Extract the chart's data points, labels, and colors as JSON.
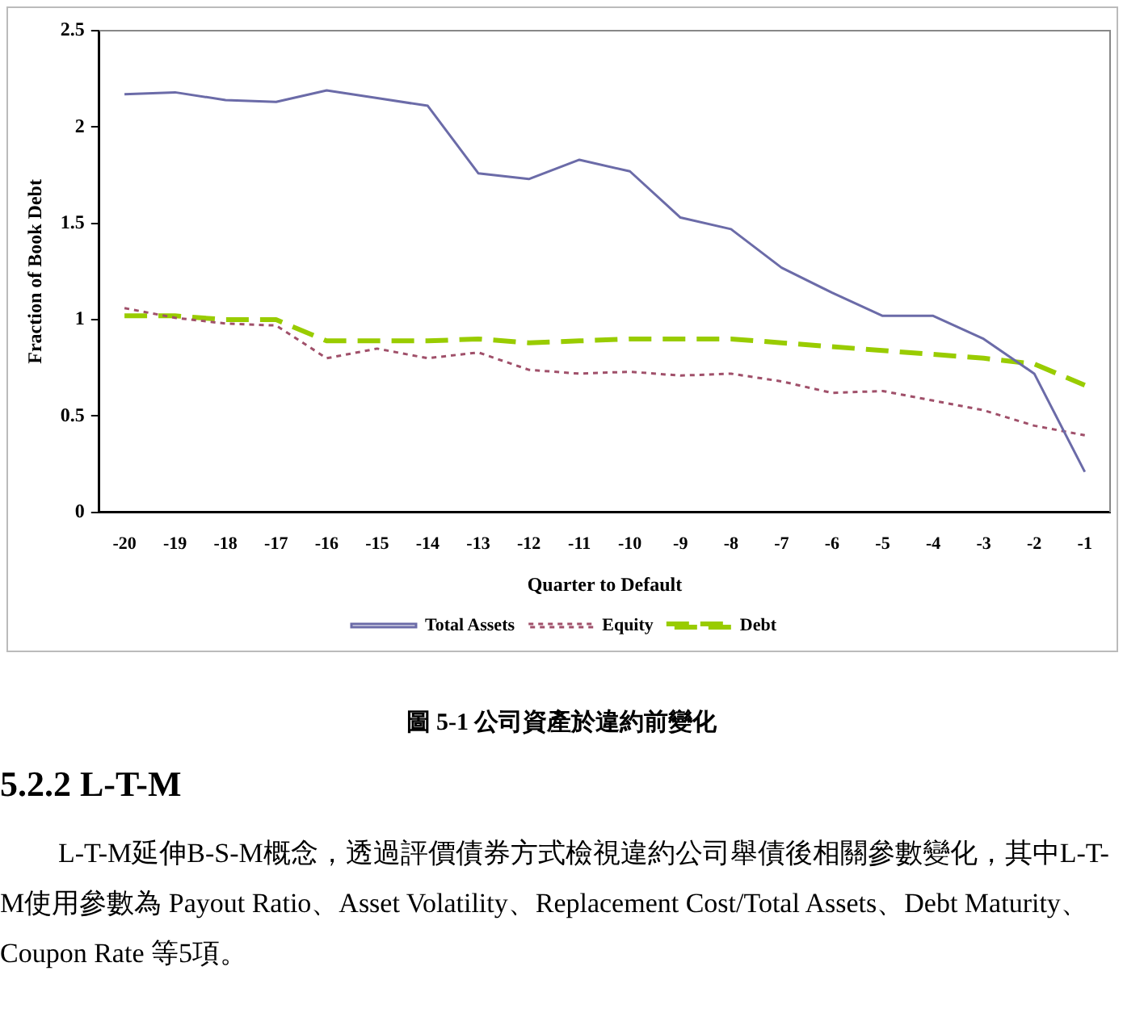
{
  "chart_data": {
    "type": "line",
    "xlabel": "Quarter to Default",
    "ylabel": "Fraction of Book Debt",
    "categories": [
      "-20",
      "-19",
      "-18",
      "-17",
      "-16",
      "-15",
      "-14",
      "-13",
      "-12",
      "-11",
      "-10",
      "-9",
      "-8",
      "-7",
      "-6",
      "-5",
      "-4",
      "-3",
      "-2",
      "-1"
    ],
    "series": [
      {
        "name": "Total Assets",
        "color": "#6b6ba8",
        "line_style": "solid",
        "values": [
          2.17,
          2.18,
          2.14,
          2.13,
          2.19,
          2.15,
          2.11,
          1.76,
          1.73,
          1.83,
          1.77,
          1.53,
          1.47,
          1.27,
          1.14,
          1.02,
          1.02,
          0.9,
          0.72,
          0.21
        ]
      },
      {
        "name": "Equity",
        "color": "#a0506a",
        "line_style": "dotted",
        "values": [
          1.06,
          1.01,
          0.98,
          0.97,
          0.8,
          0.85,
          0.8,
          0.83,
          0.74,
          0.72,
          0.73,
          0.71,
          0.72,
          0.68,
          0.62,
          0.63,
          0.58,
          0.53,
          0.45,
          0.4
        ]
      },
      {
        "name": "Debt",
        "color": "#99cc00",
        "line_style": "dashed",
        "values": [
          1.02,
          1.02,
          1.0,
          1.0,
          0.89,
          0.89,
          0.89,
          0.9,
          0.88,
          0.89,
          0.9,
          0.9,
          0.9,
          0.88,
          0.86,
          0.84,
          0.82,
          0.8,
          0.77,
          0.66
        ]
      }
    ],
    "ylim": [
      0,
      2.5
    ],
    "yticks": [
      0,
      0.5,
      1,
      1.5,
      2,
      2.5
    ],
    "grid": false,
    "legend": "bottom",
    "marker": "none",
    "annotations": [
      "圖 5-1 公司資產於違約前變化",
      "5.2.2  L-T-M",
      "L-T-M延伸B-S-M概念，透過評價債券方式檢視違約公司舉債後相關參數變化，其中L-T-M使用參數為 Payout Ratio、Asset Volatility、Replacement Cost/Total Assets、Debt Maturity、Coupon Rate 等5項。"
    ]
  }
}
